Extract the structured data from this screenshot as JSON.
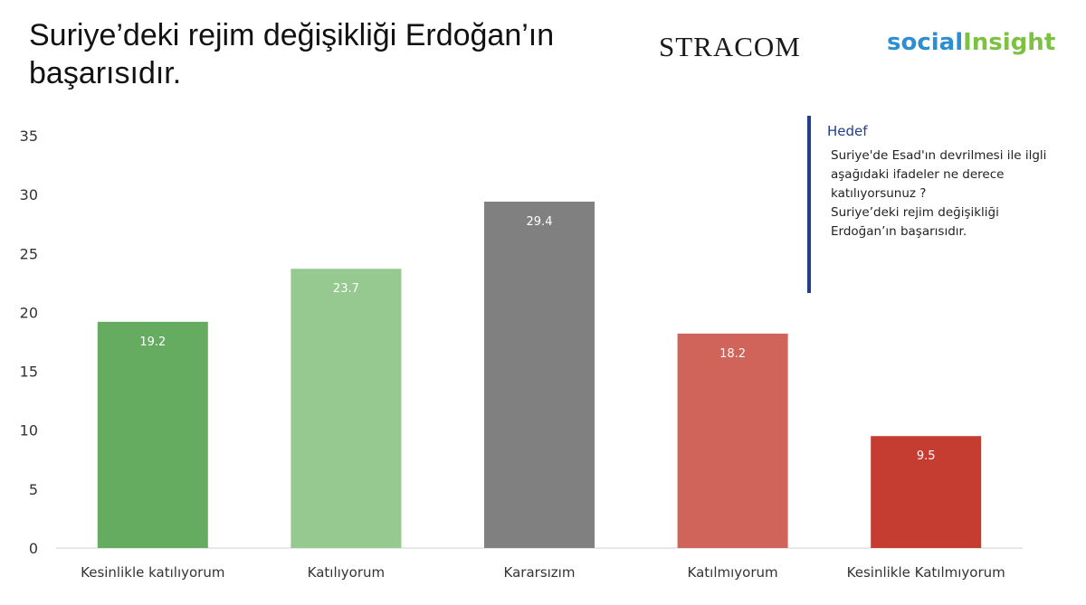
{
  "title": "Suriye’deki rejim değişikliği Erdoğan’ın başarısıdır.",
  "brands": {
    "stracom": "STRACOM",
    "social_part1": "social",
    "social_part2": "Insight"
  },
  "note": {
    "heading": "Hedef",
    "body": "Suriye'de Esad'ın devrilmesi ile ilgli aşağıdaki ifadeler ne derece katılıyorsunuz ?\nSuriye’deki rejim değişikliği Erdoğan’ın başarısıdır."
  },
  "chart_data": {
    "type": "bar",
    "title": "",
    "xlabel": "",
    "ylabel": "",
    "ylim": [
      0,
      35
    ],
    "yticks": [
      0,
      5,
      10,
      15,
      20,
      25,
      30,
      35
    ],
    "grid": false,
    "categories": [
      "Kesinlikle katılıyorum",
      "Katılıyorum",
      "Kararsızım",
      "Katılmıyorum",
      "Kesinlikle Katılmıyorum"
    ],
    "values": [
      19.2,
      23.7,
      29.4,
      18.2,
      9.5
    ],
    "data_labels": [
      "19.2",
      "23.7",
      "29.4",
      "18.2",
      "9.5"
    ],
    "colors": [
      "#65ac60",
      "#95c98f",
      "#808080",
      "#d0635a",
      "#c53d30"
    ]
  }
}
